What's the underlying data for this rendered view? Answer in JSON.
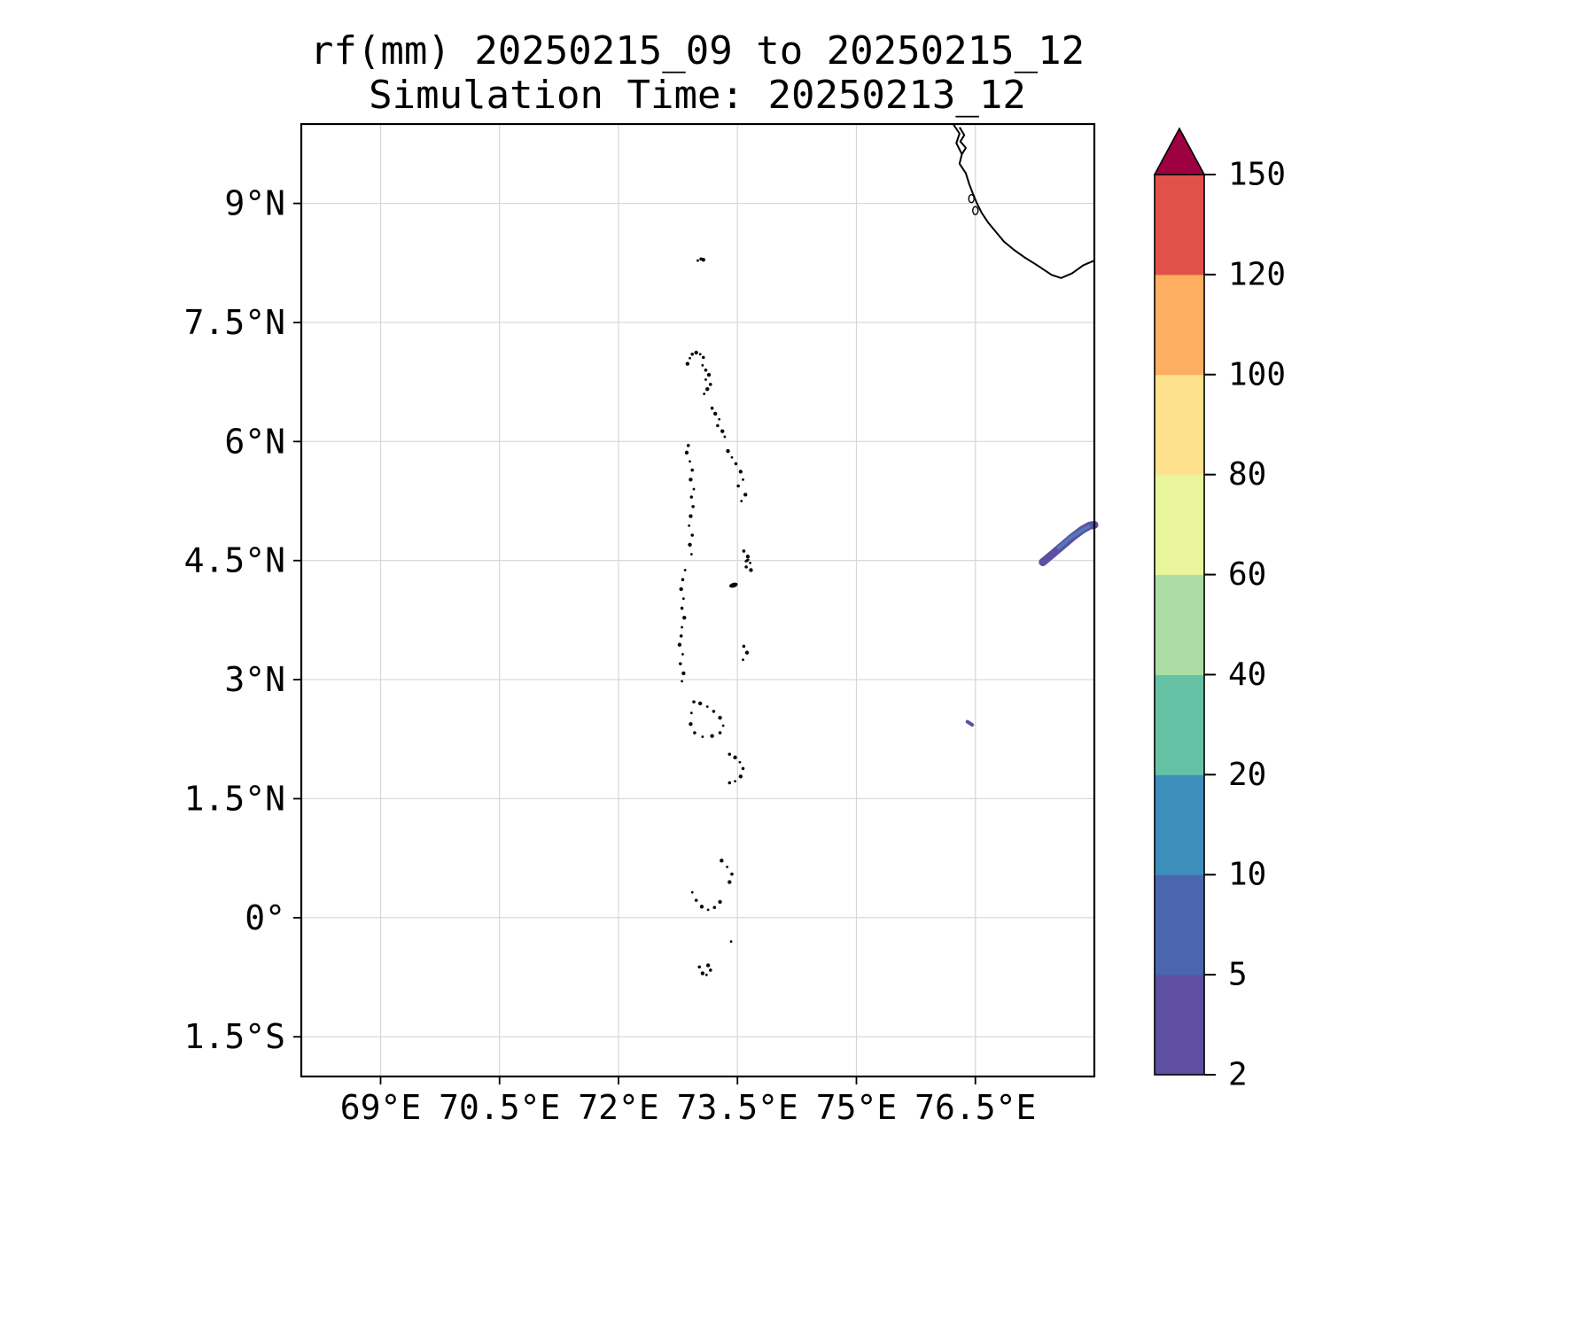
{
  "chart_data": {
    "type": "map",
    "title": "rf(mm) 20250215_09 to 20250215_12",
    "subtitle": "Simulation Time: 20250213_12",
    "variable": "rainfall (mm)",
    "axes": {
      "extent": {
        "lon_min": 68,
        "lon_max": 78,
        "lat_min": -2,
        "lat_max": 10
      },
      "x_ticks": [
        {
          "label": "69°E",
          "lon": 69
        },
        {
          "label": "70.5°E",
          "lon": 70.5
        },
        {
          "label": "72°E",
          "lon": 72
        },
        {
          "label": "73.5°E",
          "lon": 73.5
        },
        {
          "label": "75°E",
          "lon": 75
        },
        {
          "label": "76.5°E",
          "lon": 76.5
        }
      ],
      "y_ticks": [
        {
          "label": "9°N",
          "lat": 9
        },
        {
          "label": "7.5°N",
          "lat": 7.5
        },
        {
          "label": "6°N",
          "lat": 6
        },
        {
          "label": "4.5°N",
          "lat": 4.5
        },
        {
          "label": "3°N",
          "lat": 3
        },
        {
          "label": "1.5°N",
          "lat": 1.5
        },
        {
          "label": "0°",
          "lat": 0
        },
        {
          "label": "1.5°S",
          "lat": -1.5
        }
      ],
      "grid": true
    },
    "colorbar": {
      "position": "right",
      "unit": "mm",
      "levels": [
        2,
        5,
        10,
        20,
        40,
        60,
        80,
        100,
        120,
        150
      ],
      "segment_colors": [
        "#5e4fa2",
        "#4a66ad",
        "#3e8ebc",
        "#66c2a5",
        "#abdda4",
        "#e8f59b",
        "#fee18c",
        "#fdae61",
        "#e1514b"
      ],
      "extend_max_color": "#9e0142"
    },
    "map": {
      "coastlines": [
        [
          [
            76.22,
            10.0
          ],
          [
            76.3,
            9.88
          ],
          [
            76.26,
            9.76
          ],
          [
            76.33,
            9.62
          ],
          [
            76.3,
            9.5
          ],
          [
            76.38,
            9.38
          ],
          [
            76.42,
            9.25
          ],
          [
            76.47,
            9.12
          ],
          [
            76.52,
            9.0
          ],
          [
            76.58,
            8.88
          ],
          [
            76.66,
            8.76
          ],
          [
            76.76,
            8.64
          ],
          [
            76.86,
            8.52
          ],
          [
            76.98,
            8.42
          ],
          [
            77.12,
            8.32
          ],
          [
            77.28,
            8.22
          ],
          [
            77.46,
            8.1
          ],
          [
            77.58,
            8.06
          ],
          [
            77.72,
            8.12
          ],
          [
            77.86,
            8.22
          ],
          [
            78.0,
            8.28
          ]
        ],
        [
          [
            76.3,
            9.96
          ],
          [
            76.36,
            9.86
          ],
          [
            76.31,
            9.78
          ],
          [
            76.38,
            9.7
          ],
          [
            76.33,
            9.62
          ]
        ]
      ],
      "lakes": [
        {
          "lon": 76.45,
          "lat": 9.06
        },
        {
          "lon": 76.5,
          "lat": 8.91
        }
      ],
      "islands": [
        [
          72.9,
          7.05
        ],
        [
          72.93,
          7.1
        ],
        [
          72.98,
          7.12
        ],
        [
          73.03,
          7.1
        ],
        [
          73.07,
          7.06
        ],
        [
          72.87,
          6.98
        ],
        [
          73.06,
          6.96
        ],
        [
          73.1,
          6.9
        ],
        [
          73.14,
          6.84
        ],
        [
          73.1,
          6.78
        ],
        [
          73.16,
          6.72
        ],
        [
          73.12,
          6.66
        ],
        [
          73.08,
          6.6
        ],
        [
          73.18,
          6.42
        ],
        [
          73.22,
          6.35
        ],
        [
          73.27,
          6.28
        ],
        [
          73.25,
          6.2
        ],
        [
          73.31,
          6.13
        ],
        [
          73.34,
          6.06
        ],
        [
          72.88,
          5.95
        ],
        [
          72.86,
          5.86
        ],
        [
          72.9,
          5.75
        ],
        [
          72.93,
          5.64
        ],
        [
          72.91,
          5.52
        ],
        [
          72.95,
          5.4
        ],
        [
          72.92,
          5.3
        ],
        [
          73.38,
          5.88
        ],
        [
          73.43,
          5.8
        ],
        [
          73.48,
          5.72
        ],
        [
          73.54,
          5.62
        ],
        [
          73.57,
          5.52
        ],
        [
          73.51,
          5.44
        ],
        [
          73.6,
          5.33
        ],
        [
          73.55,
          5.25
        ],
        [
          72.94,
          5.18
        ],
        [
          72.91,
          5.06
        ],
        [
          72.89,
          4.94
        ],
        [
          72.93,
          4.82
        ],
        [
          72.9,
          4.7
        ],
        [
          72.92,
          4.58
        ],
        [
          73.58,
          4.62
        ],
        [
          73.63,
          4.55
        ],
        [
          73.66,
          4.47
        ],
        [
          73.61,
          4.42
        ],
        [
          73.67,
          4.38
        ],
        [
          72.84,
          4.38
        ],
        [
          72.81,
          4.26
        ],
        [
          72.79,
          4.14
        ],
        [
          72.82,
          4.02
        ],
        [
          72.8,
          3.9
        ],
        [
          72.83,
          3.78
        ],
        [
          72.8,
          3.66
        ],
        [
          72.79,
          3.55
        ],
        [
          72.77,
          3.44
        ],
        [
          72.81,
          3.32
        ],
        [
          72.78,
          3.2
        ],
        [
          72.82,
          3.08
        ],
        [
          72.8,
          2.98
        ],
        [
          73.58,
          3.42
        ],
        [
          73.62,
          3.34
        ],
        [
          73.57,
          3.25
        ],
        [
          72.95,
          2.72
        ],
        [
          73.03,
          2.7
        ],
        [
          73.12,
          2.66
        ],
        [
          73.2,
          2.6
        ],
        [
          73.28,
          2.52
        ],
        [
          73.32,
          2.42
        ],
        [
          73.28,
          2.33
        ],
        [
          73.18,
          2.29
        ],
        [
          73.06,
          2.28
        ],
        [
          72.96,
          2.33
        ],
        [
          72.91,
          2.44
        ],
        [
          72.92,
          2.58
        ],
        [
          73.4,
          2.06
        ],
        [
          73.47,
          2.02
        ],
        [
          73.53,
          1.96
        ],
        [
          73.57,
          1.88
        ],
        [
          73.54,
          1.78
        ],
        [
          73.47,
          1.72
        ],
        [
          73.4,
          1.7
        ],
        [
          73.3,
          0.72
        ],
        [
          73.37,
          0.64
        ],
        [
          73.43,
          0.55
        ],
        [
          73.4,
          0.45
        ],
        [
          72.93,
          0.32
        ],
        [
          72.98,
          0.22
        ],
        [
          73.05,
          0.14
        ],
        [
          73.13,
          0.1
        ],
        [
          73.21,
          0.13
        ],
        [
          73.28,
          0.2
        ],
        [
          73.42,
          -0.3
        ],
        [
          73.02,
          -0.62
        ],
        [
          73.06,
          -0.7
        ],
        [
          73.11,
          -0.72
        ],
        [
          73.16,
          -0.66
        ],
        [
          73.13,
          -0.6
        ],
        [
          73.0,
          8.28
        ],
        [
          73.04,
          8.3
        ],
        [
          73.07,
          8.29
        ]
      ],
      "island_patches": [
        {
          "lon": 73.45,
          "lat": 4.19,
          "rx": 5,
          "ry": 2.6,
          "rot": -15
        },
        {
          "lon": 73.62,
          "lat": 4.5,
          "rx": 3,
          "ry": 1.6,
          "rot": -30
        }
      ],
      "rain_features": [
        {
          "kind": "streak",
          "value_range": "2-5",
          "color": "#5e4fa2",
          "width": 9,
          "points": [
            [
              77.35,
              4.48
            ],
            [
              77.47,
              4.58
            ],
            [
              77.6,
              4.69
            ],
            [
              77.73,
              4.8
            ],
            [
              77.85,
              4.89
            ],
            [
              77.94,
              4.94
            ],
            [
              78.0,
              4.95
            ]
          ]
        },
        {
          "kind": "streak",
          "value_range": "5-10",
          "color": "#4d7ab8",
          "width": 4,
          "points": [
            [
              77.55,
              4.66
            ],
            [
              77.7,
              4.79
            ],
            [
              77.84,
              4.88
            ],
            [
              77.93,
              4.93
            ]
          ]
        },
        {
          "kind": "streak",
          "value_range": "2-5",
          "color": "#5e4fa2",
          "width": 4,
          "points": [
            [
              76.4,
              2.47
            ],
            [
              76.46,
              2.43
            ]
          ]
        }
      ]
    }
  },
  "styles": {
    "grid_color": "#d6d6d6",
    "coast_color": "#000000",
    "island_color": "#0a0a0a",
    "frame_color": "#000000",
    "text_color": "#000000",
    "background": "#ffffff"
  }
}
